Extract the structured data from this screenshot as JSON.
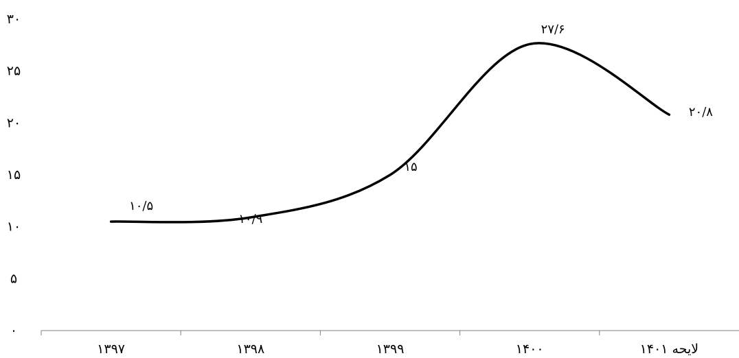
{
  "chart_data": {
    "type": "line",
    "title": "",
    "xlabel": "",
    "ylabel": "",
    "categories": [
      "۱۳۹۷",
      "۱۳۹۸",
      "۱۳۹۹",
      "۱۴۰۰",
      "لایحه ۱۴۰۱"
    ],
    "series": [
      {
        "values": [
          10.5,
          10.9,
          15,
          27.6,
          20.8
        ],
        "labels": [
          "۱۰/۵",
          "۱۰/۹",
          "۱۵",
          "۲۷/۶",
          "۲۰/۸"
        ],
        "color": "#000000",
        "smooth": true
      }
    ],
    "ylim": [
      0,
      30
    ],
    "yticks": [
      0,
      5,
      10,
      15,
      20,
      25,
      30
    ],
    "ytick_labels": [
      "۰",
      "۵",
      "۱۰",
      "۱۵",
      "۲۰",
      "۲۵",
      "۳۰"
    ],
    "grid": false,
    "legend": "none"
  }
}
